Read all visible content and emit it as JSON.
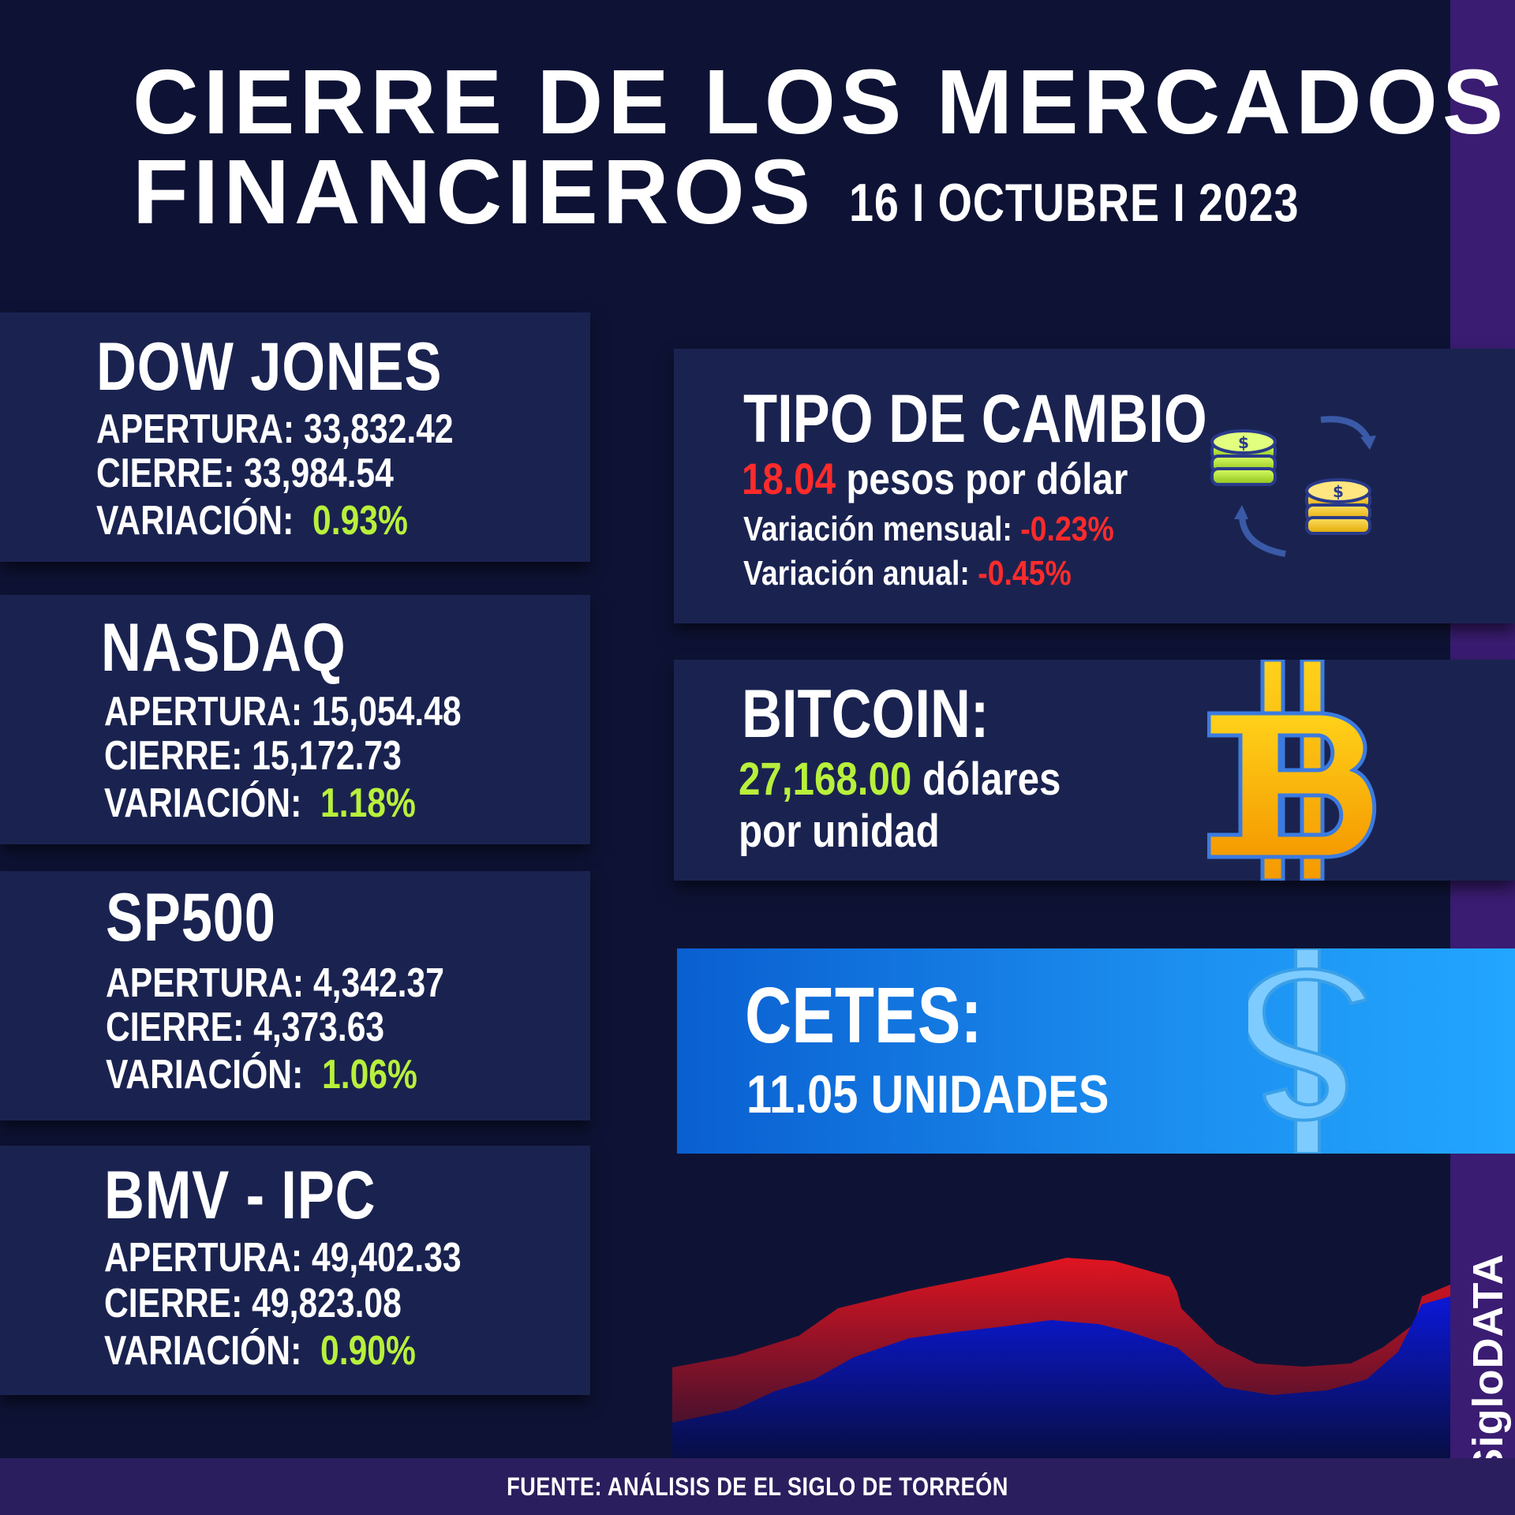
{
  "header": {
    "title_line1": "CIERRE DE LOS MERCADOS",
    "title_line2": "FINANCIEROS",
    "date": "16 I OCTUBRE I 2023"
  },
  "indices": [
    {
      "name": "DOW JONES",
      "apertura_label": "APERTURA:",
      "apertura": "33,832.42",
      "cierre_label": "CIERRE:",
      "cierre": "33,984.54",
      "variacion_label": "VARIACIÓN:",
      "variacion": "0.93%"
    },
    {
      "name": "NASDAQ",
      "apertura_label": "APERTURA:",
      "apertura": "15,054.48",
      "cierre_label": "CIERRE:",
      "cierre": "15,172.73",
      "variacion_label": "VARIACIÓN:",
      "variacion": "1.18%"
    },
    {
      "name": "SP500",
      "apertura_label": "APERTURA:",
      "apertura": "4,342.37",
      "cierre_label": "CIERRE:",
      "cierre": "4,373.63",
      "variacion_label": "VARIACIÓN:",
      "variacion": "1.06%"
    },
    {
      "name": "BMV - IPC",
      "apertura_label": "APERTURA:",
      "apertura": "49,402.33",
      "cierre_label": "CIERRE:",
      "cierre": "49,823.08",
      "variacion_label": "VARIACIÓN:",
      "variacion": "0.90%"
    }
  ],
  "tipo_cambio": {
    "title": "TIPO DE CAMBIO",
    "value": "18.04",
    "unit": "pesos por dólar",
    "mensual_label": "Variación mensual:",
    "mensual": "-0.23%",
    "anual_label": "Variación anual:",
    "anual": "-0.45%",
    "icon": "coins-exchange-icon"
  },
  "bitcoin": {
    "title": "BITCOIN:",
    "value": "27,168.00",
    "unit": "dólares",
    "unit2": "por unidad",
    "icon": "bitcoin-icon"
  },
  "cetes": {
    "title": "CETES:",
    "value": "11.05 UNIDADES",
    "icon": "dollar-icon"
  },
  "brand": "SigloDATA",
  "footer": "FUENTE: ANÁLISIS DE EL SIGLO DE TORREÓN",
  "colors": {
    "background": "#0e1335",
    "card": "#1a2350",
    "positive": "#b8f03c",
    "negative": "#ff2b2b",
    "accent_purple": "#3a1c72",
    "cetes_blue": "#1c8ff0"
  }
}
